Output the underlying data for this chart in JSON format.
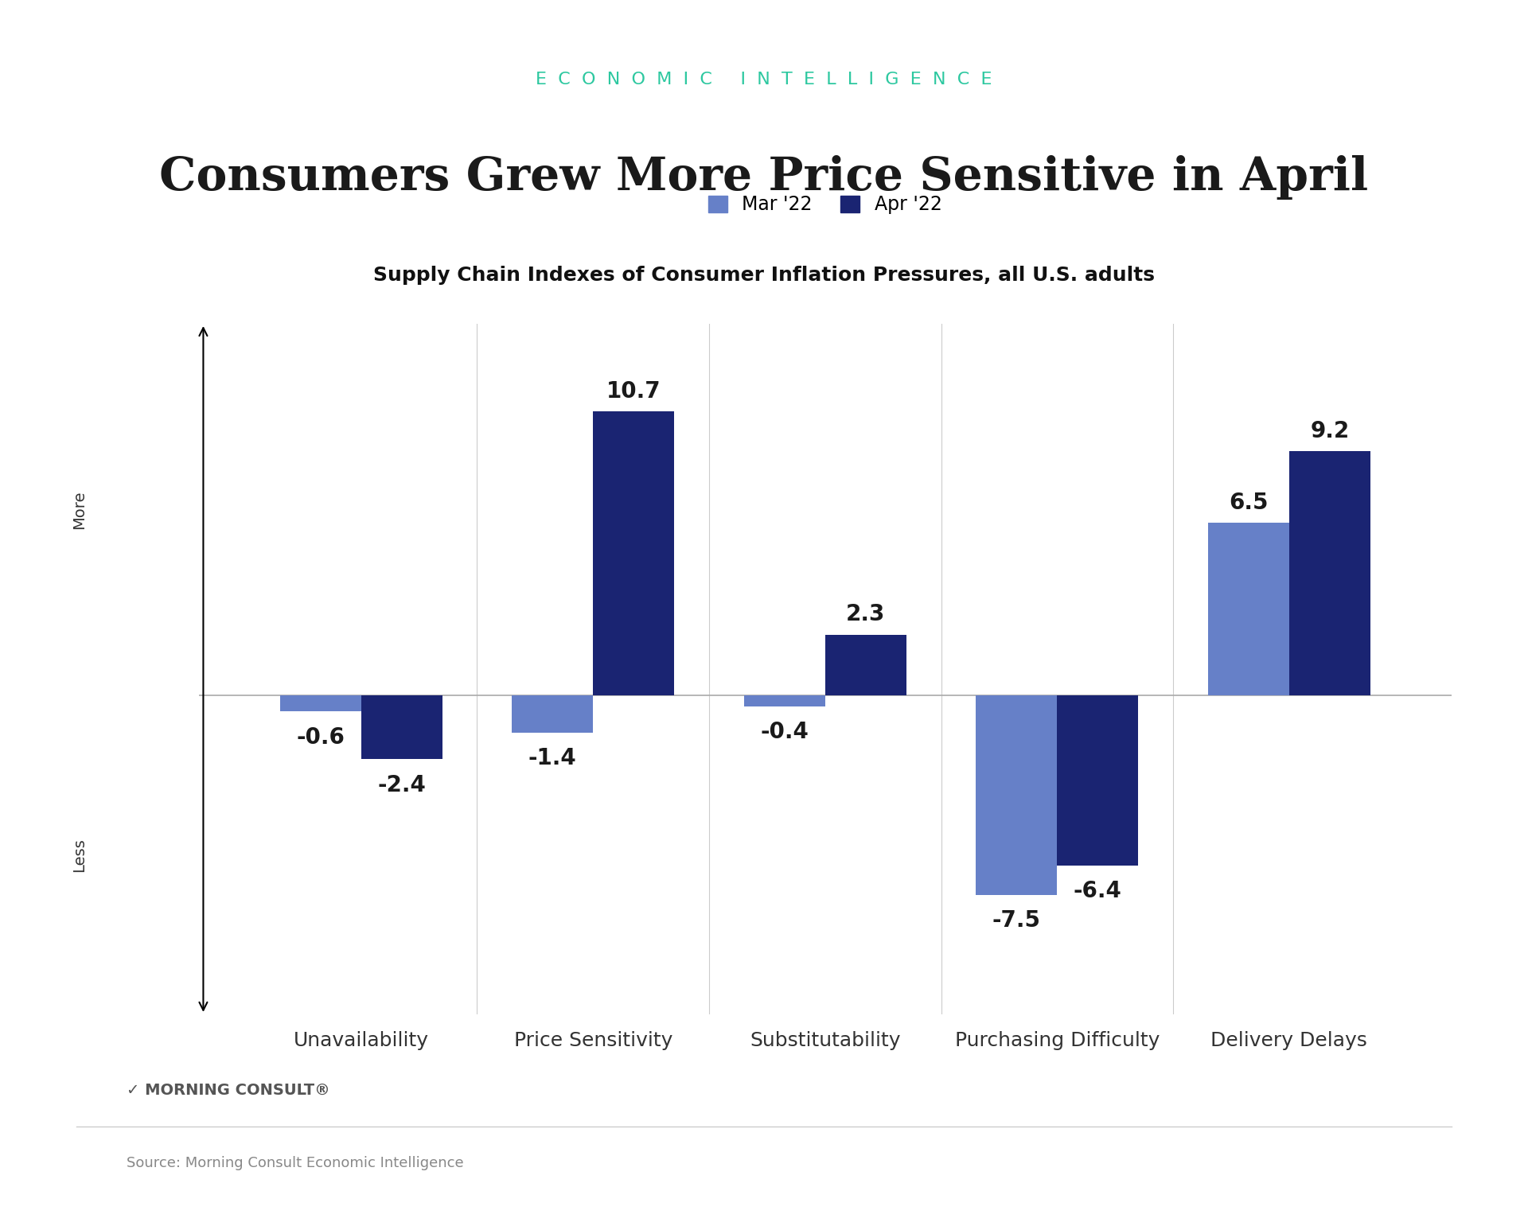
{
  "title": "Consumers Grew More Price Sensitive in April",
  "subtitle": "Supply Chain Indexes of Consumer Inflation Pressures, all U.S. adults",
  "header": "ECONOMIC INTELLIGENCE",
  "header_color": "#2DC8A0",
  "source": "Source: Morning Consult Economic Intelligence",
  "brand": "MORNING CONSULT",
  "categories": [
    "Unavailability",
    "Price Sensitivity",
    "Substitutability",
    "Purchasing Difficulty",
    "Delivery Delays"
  ],
  "mar_values": [
    -0.6,
    -1.4,
    -0.4,
    -7.5,
    6.5
  ],
  "apr_values": [
    -2.4,
    10.7,
    2.3,
    -6.4,
    9.2
  ],
  "mar_color": "#6680C8",
  "apr_color": "#1A2472",
  "bar_width": 0.35,
  "ylim": [
    -12,
    14
  ],
  "background_color": "#FFFFFF",
  "title_fontsize": 42,
  "subtitle_fontsize": 18,
  "header_fontsize": 16,
  "label_fontsize": 18,
  "value_fontsize": 20,
  "legend_fontsize": 17
}
